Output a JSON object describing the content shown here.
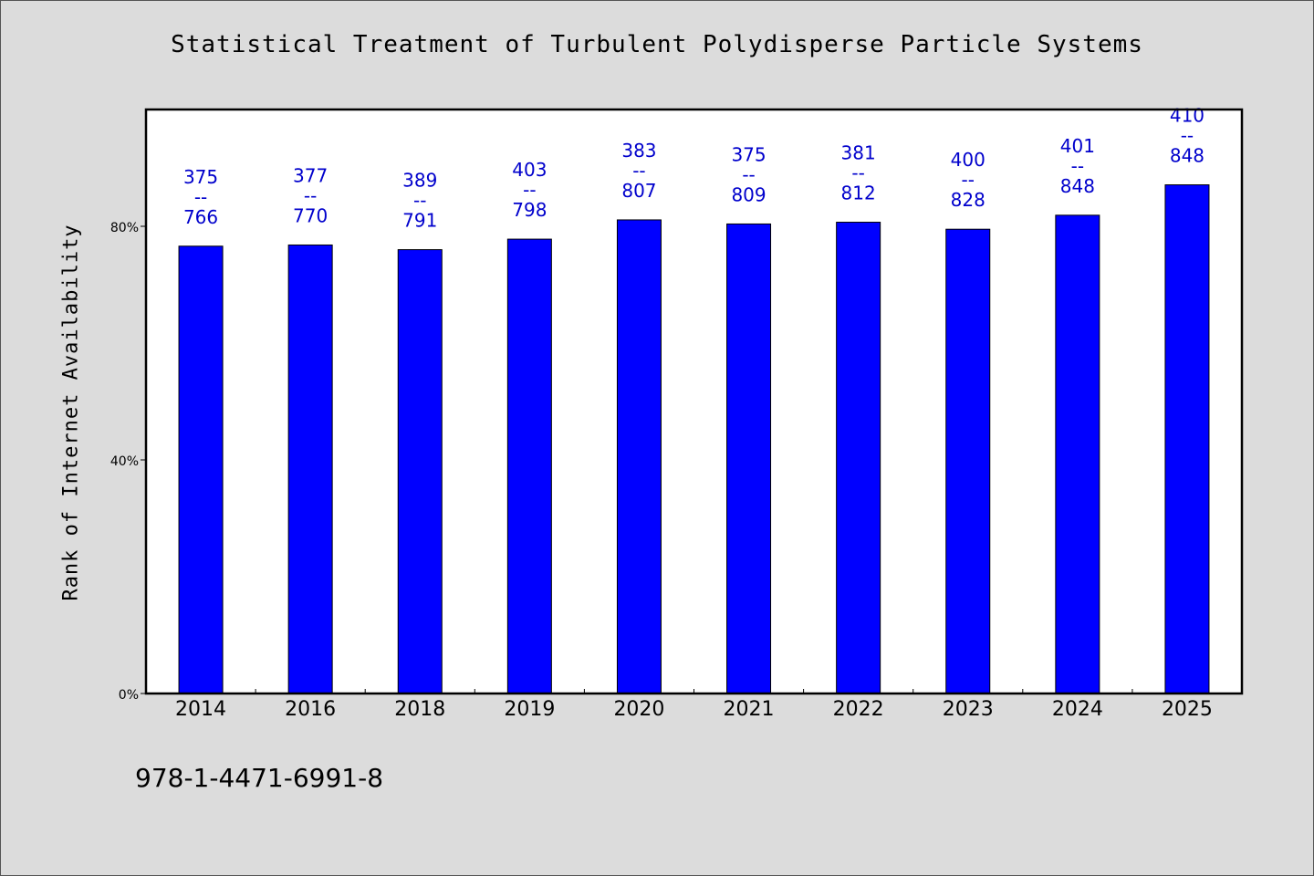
{
  "chart_data": {
    "type": "bar",
    "title": "Statistical Treatment of Turbulent Polydisperse Particle Systems",
    "xlabel": "",
    "ylabel": "Rank of Internet Availability",
    "categories": [
      "2014",
      "2016",
      "2018",
      "2019",
      "2020",
      "2021",
      "2022",
      "2023",
      "2024",
      "2025"
    ],
    "values": [
      76.6,
      76.8,
      76.0,
      77.8,
      81.1,
      80.4,
      80.7,
      79.5,
      81.9,
      87.1
    ],
    "data_labels": [
      {
        "top": "375",
        "sep": "--",
        "bottom": "766"
      },
      {
        "top": "377",
        "sep": "--",
        "bottom": "770"
      },
      {
        "top": "389",
        "sep": "--",
        "bottom": "791"
      },
      {
        "top": "403",
        "sep": "--",
        "bottom": "798"
      },
      {
        "top": "383",
        "sep": "--",
        "bottom": "807"
      },
      {
        "top": "375",
        "sep": "--",
        "bottom": "809"
      },
      {
        "top": "381",
        "sep": "--",
        "bottom": "812"
      },
      {
        "top": "400",
        "sep": "--",
        "bottom": "828"
      },
      {
        "top": "401",
        "sep": "--",
        "bottom": "848"
      },
      {
        "top": "410",
        "sep": "--",
        "bottom": "848"
      }
    ],
    "yticks": [
      "0%",
      "40%",
      "80%"
    ],
    "ytick_values": [
      0,
      40,
      80
    ],
    "ylim": [
      0,
      100
    ],
    "grid": false,
    "legend": "none",
    "bar_color": "#0000ff",
    "label_color": "#0000cc"
  },
  "footer": {
    "isbn": "978-1-4471-6991-8"
  }
}
